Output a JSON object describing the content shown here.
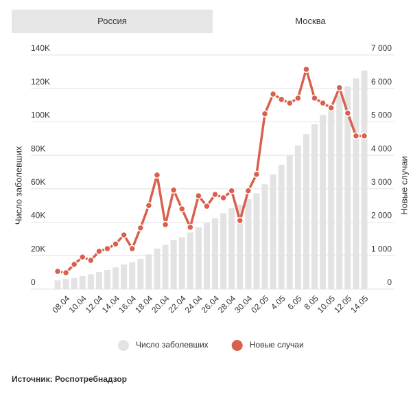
{
  "tabs": [
    "Россия",
    "Москва"
  ],
  "chart_data": {
    "type": "bar-line",
    "categories": [
      null,
      "08.04",
      null,
      "10.04",
      null,
      "12.04",
      null,
      "14.04",
      null,
      "16.04",
      null,
      "18.04",
      null,
      "20.04",
      null,
      "22.04",
      null,
      "24.04",
      null,
      "26.04",
      null,
      "28.04",
      null,
      "30.04",
      null,
      "02.05",
      null,
      "4.05",
      null,
      "6.05",
      null,
      "8.05",
      null,
      "10.05",
      null,
      "12.05",
      null,
      "14.05"
    ],
    "series": [
      {
        "name": "Число заболевших",
        "type": "bar",
        "axis": "y",
        "color": "#e3e3e3",
        "values": [
          5200,
          6000,
          6700,
          7800,
          8900,
          10200,
          11500,
          13000,
          14700,
          16100,
          18100,
          20800,
          24300,
          26400,
          29400,
          31100,
          33900,
          36900,
          39500,
          42400,
          45400,
          48400,
          50500,
          53700,
          57300,
          62700,
          68600,
          74400,
          80100,
          85900,
          92700,
          98500,
          104200,
          109700,
          115900,
          121300,
          126000,
          130700
        ]
      },
      {
        "name": "Новые случаи",
        "type": "line",
        "axis": "y2",
        "color": "#d9604c",
        "values": [
          530,
          490,
          740,
          960,
          860,
          1130,
          1210,
          1350,
          1620,
          1210,
          1830,
          2500,
          3410,
          1930,
          2960,
          2400,
          1850,
          2790,
          2480,
          2830,
          2730,
          2940,
          2050,
          2940,
          3430,
          5240,
          5830,
          5670,
          5560,
          5710,
          6570,
          5710,
          5560,
          5420,
          6020,
          5260,
          4580,
          4580
        ]
      }
    ],
    "ylabel": "Число заболевших",
    "y2label": "Новые случаи",
    "ylim": [
      0,
      140000
    ],
    "yticks": [
      0,
      {
        "value": 20000,
        "label": "20K"
      },
      {
        "value": 40000,
        "label": "40K"
      },
      {
        "value": 60000,
        "label": "60K"
      },
      {
        "value": 80000,
        "label": "80K"
      },
      {
        "value": 100000,
        "label": "100K"
      },
      {
        "value": 120000,
        "label": "120K"
      },
      {
        "value": 140000,
        "label": "140K"
      }
    ],
    "y2lim": [
      0,
      7000
    ],
    "y2ticks": [
      0,
      {
        "value": 1000,
        "label": "1 000"
      },
      {
        "value": 2000,
        "label": "2 000"
      },
      {
        "value": 3000,
        "label": "3 000"
      },
      {
        "value": 4000,
        "label": "4 000"
      },
      {
        "value": 5000,
        "label": "5 000"
      },
      {
        "value": 6000,
        "label": "6 000"
      },
      {
        "value": 7000,
        "label": "7 000"
      }
    ],
    "grid": true
  },
  "source": "Источник: Роспотребнадзор"
}
